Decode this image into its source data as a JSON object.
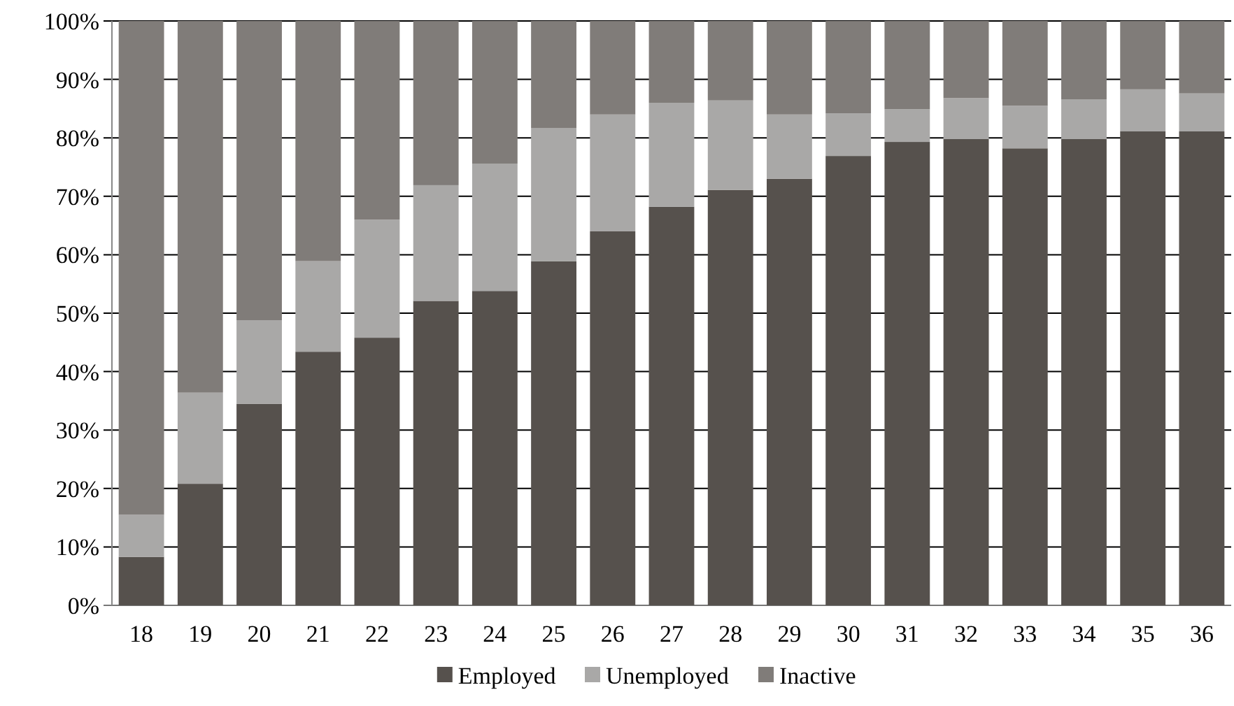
{
  "chart_data": {
    "type": "bar",
    "stacked": true,
    "categories": [
      "18",
      "19",
      "20",
      "21",
      "22",
      "23",
      "24",
      "25",
      "26",
      "27",
      "28",
      "29",
      "30",
      "31",
      "32",
      "33",
      "34",
      "35",
      "36"
    ],
    "series": [
      {
        "name": "Employed",
        "color": "#56514d",
        "values": [
          8.3,
          20.8,
          34.5,
          43.4,
          45.8,
          52.1,
          53.8,
          58.9,
          64.0,
          68.2,
          71.1,
          73.0,
          76.9,
          79.3,
          79.8,
          78.2,
          79.8,
          81.1,
          81.1
        ]
      },
      {
        "name": "Unemployed",
        "color": "#a9a8a7",
        "values": [
          7.2,
          15.6,
          14.3,
          15.5,
          20.2,
          19.8,
          21.8,
          22.8,
          20.0,
          17.8,
          15.3,
          11.0,
          7.3,
          5.6,
          7.0,
          7.3,
          6.8,
          7.2,
          6.5
        ]
      },
      {
        "name": "Inactive",
        "color": "#807c79",
        "values": [
          84.5,
          63.6,
          51.2,
          41.1,
          34.0,
          28.1,
          24.4,
          18.3,
          16.0,
          14.0,
          13.6,
          16.0,
          15.8,
          15.1,
          13.2,
          14.5,
          13.4,
          11.7,
          12.4
        ]
      }
    ],
    "ylim": [
      0,
      100
    ],
    "yticks": [
      {
        "value": 0,
        "label": "0%"
      },
      {
        "value": 10,
        "label": "10%"
      },
      {
        "value": 20,
        "label": "20%"
      },
      {
        "value": 30,
        "label": "30%"
      },
      {
        "value": 40,
        "label": "40%"
      },
      {
        "value": 50,
        "label": "50%"
      },
      {
        "value": 60,
        "label": "60%"
      },
      {
        "value": 70,
        "label": "70%"
      },
      {
        "value": 80,
        "label": "80%"
      },
      {
        "value": 90,
        "label": "90%"
      },
      {
        "value": 100,
        "label": "100%"
      }
    ],
    "grid": "y",
    "legend": "bottom"
  }
}
